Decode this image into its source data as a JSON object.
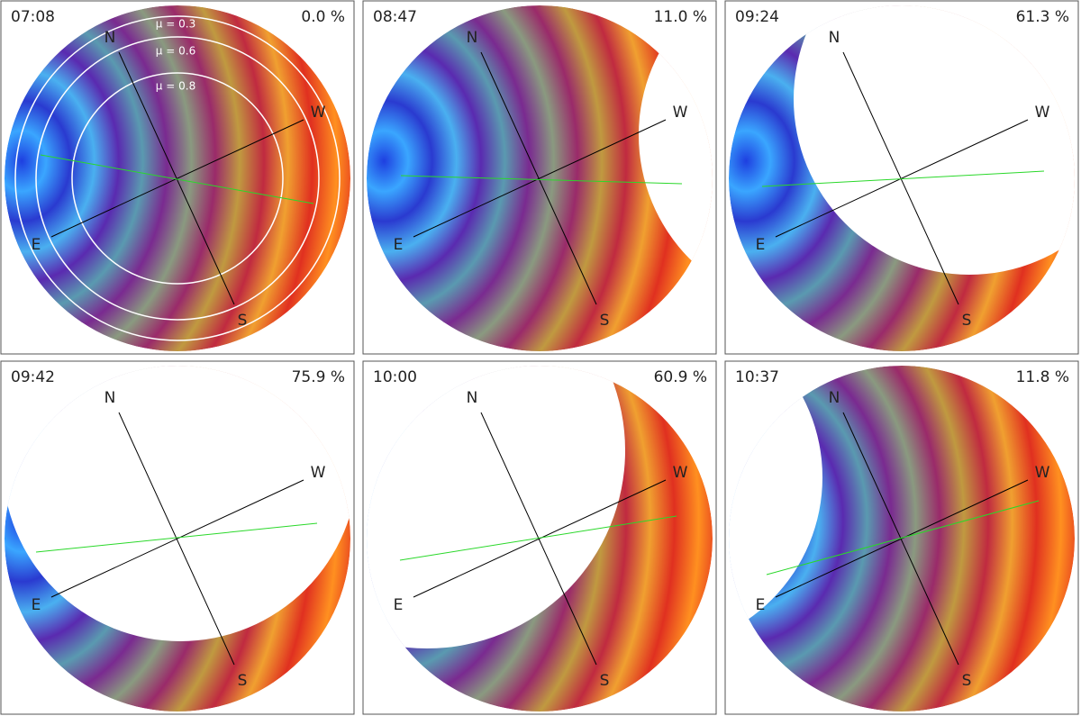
{
  "panels": [
    {
      "time": "07:08",
      "percent": "0.0 %"
    },
    {
      "time": "08:47",
      "percent": "11.0 %"
    },
    {
      "time": "09:24",
      "percent": "61.3 %"
    },
    {
      "time": "09:42",
      "percent": "75.9 %"
    },
    {
      "time": "10:00",
      "percent": "60.9 %"
    },
    {
      "time": "10:37",
      "percent": "11.8 %"
    }
  ],
  "compass": {
    "north": "N",
    "east": "E",
    "south": "S",
    "west": "W"
  },
  "mu_labels": [
    "μ = 0.3",
    "μ = 0.6",
    "μ = 0.8"
  ]
}
